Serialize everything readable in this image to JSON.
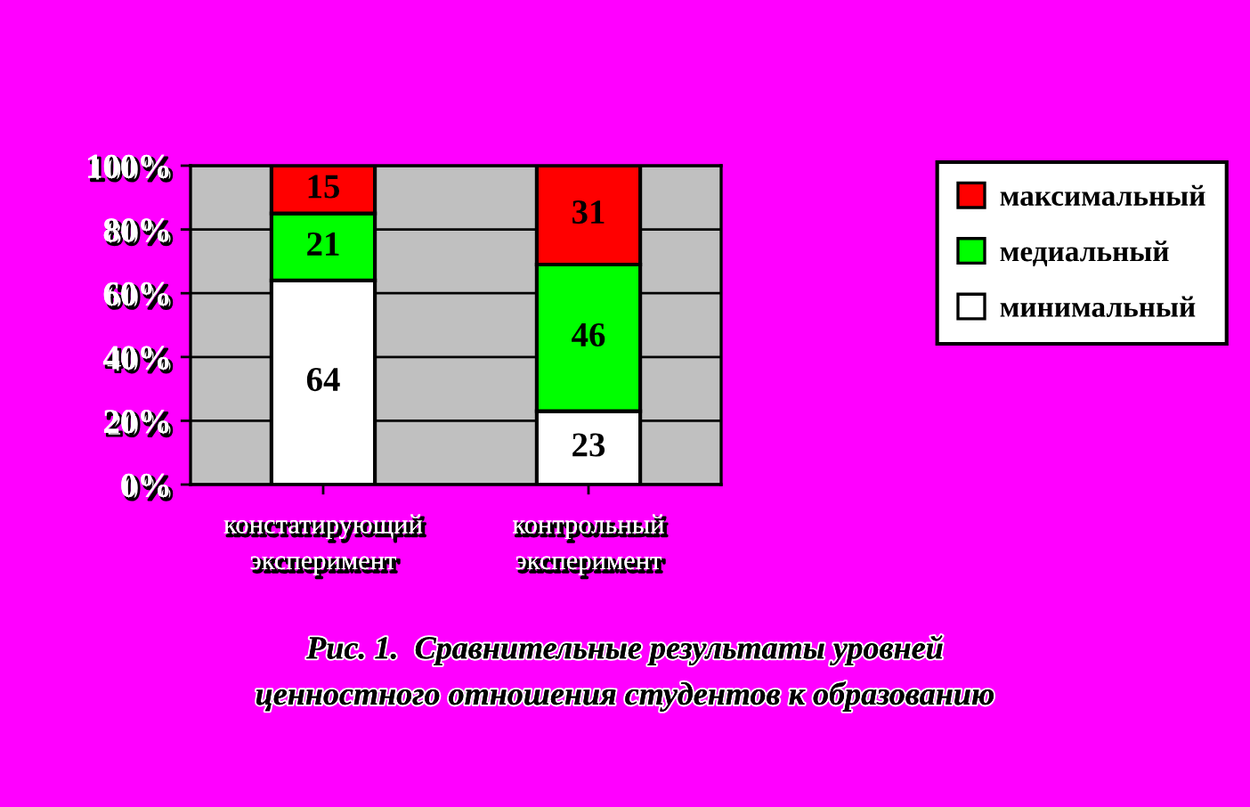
{
  "chart_data": {
    "type": "bar",
    "stacked": true,
    "title": "Рис. 1.  Сравнительные результаты уровней\nценностного отношения студентов к образованию",
    "categories": [
      "констатирующий\nэксперимент",
      "контрольный\nэксперимент"
    ],
    "series": [
      {
        "name": "минимальный",
        "color": "#ffffff",
        "values": [
          64,
          23
        ]
      },
      {
        "name": "медиальный",
        "color": "#00ff00",
        "values": [
          21,
          46
        ]
      },
      {
        "name": "максимальный",
        "color": "#ff0000",
        "values": [
          15,
          31
        ]
      }
    ],
    "ylim": [
      0,
      100
    ],
    "yticks": [
      {
        "value": 0,
        "label": "0%"
      },
      {
        "value": 20,
        "label": "20%"
      },
      {
        "value": 40,
        "label": "40%"
      },
      {
        "value": 60,
        "label": "60%"
      },
      {
        "value": 80,
        "label": "80%"
      },
      {
        "value": 100,
        "label": "100%"
      }
    ],
    "grid": "y",
    "legend": "right",
    "data_labels": true
  }
}
